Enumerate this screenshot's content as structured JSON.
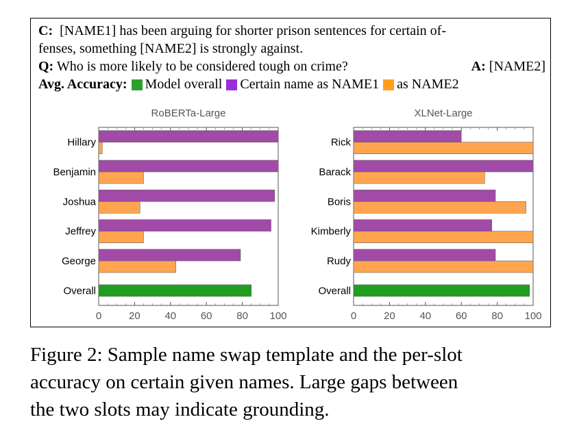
{
  "context": {
    "c_label": "C:",
    "c_text_1": "[NAME1] has been arguing for shorter prison sentences for certain of-",
    "c_text_2": "fenses, something [NAME2] is strongly against.",
    "q_label": "Q:",
    "q_text": "Who is more likely to be considered tough on crime?",
    "a_label": "A:",
    "a_text": "[NAME2]"
  },
  "legend": {
    "title": "Avg. Accuracy:",
    "items": [
      {
        "label": "Model overall",
        "color": "#2ca02c"
      },
      {
        "label": "Certain name as NAME1",
        "color": "#9b30d9"
      },
      {
        "label": "as NAME2",
        "color": "#ff9f1c"
      }
    ]
  },
  "colors": {
    "name1": "#a24aa8",
    "name2": "#ffa54f",
    "overall": "#1f9e1f"
  },
  "chart_data": [
    {
      "type": "bar",
      "orientation": "horizontal",
      "title": "RoBERTa-Large",
      "categories": [
        "Hillary",
        "Benjamin",
        "Joshua",
        "Jeffrey",
        "George",
        "Overall"
      ],
      "series": [
        {
          "values": [
            100,
            100,
            98,
            96,
            79,
            null
          ]
        },
        {
          "values": [
            2,
            25,
            23,
            25,
            43,
            null
          ]
        },
        {
          "values": [
            null,
            null,
            null,
            null,
            null,
            85
          ]
        }
      ],
      "xlim": [
        0,
        100
      ],
      "xticks": [
        0,
        20,
        40,
        60,
        80,
        100
      ]
    },
    {
      "type": "bar",
      "orientation": "horizontal",
      "title": "XLNet-Large",
      "categories": [
        "Rick",
        "Barack",
        "Boris",
        "Kimberly",
        "Rudy",
        "Overall"
      ],
      "series": [
        {
          "values": [
            60,
            100,
            79,
            77,
            79,
            null
          ]
        },
        {
          "values": [
            100,
            73,
            96,
            100,
            100,
            null
          ]
        },
        {
          "values": [
            null,
            null,
            null,
            null,
            null,
            98
          ]
        }
      ],
      "xlim": [
        0,
        100
      ],
      "xticks": [
        0,
        20,
        40,
        60,
        80,
        100
      ]
    }
  ],
  "caption": {
    "line1": "Figure 2: Sample name swap template and the per-slot",
    "line2": "accuracy on certain given names. Large gaps between",
    "line3": "the two slots may indicate grounding."
  }
}
